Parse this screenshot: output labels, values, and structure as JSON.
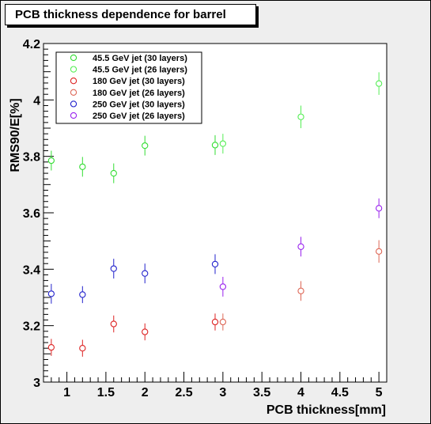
{
  "chart_data": {
    "type": "scatter",
    "title": "PCB thickness dependence for barrel",
    "xlabel": "PCB thickness[mm]",
    "ylabel": "RMS90/E[%]",
    "xlim": [
      0.7,
      5.1
    ],
    "ylim": [
      3.0,
      4.2
    ],
    "xticks": [
      1,
      1.5,
      2,
      2.5,
      3,
      3.5,
      4,
      4.5,
      5
    ],
    "xtick_labels": [
      "1",
      "1.5",
      "2",
      "2.5",
      "3",
      "3.5",
      "4",
      "4.5",
      "5"
    ],
    "yticks": [
      3,
      3.2,
      3.4,
      3.6,
      3.8,
      4,
      4.2
    ],
    "ytick_labels": [
      "3",
      "3.2",
      "3.4",
      "3.6",
      "3.8",
      "4",
      "4.2"
    ],
    "legend_position": "top-left",
    "grid": false,
    "series": [
      {
        "name": "45.5 GeV jet (30 layers)",
        "color": "#33dd33",
        "x": [
          0.8,
          1.2,
          1.6,
          2.0,
          2.9
        ],
        "y": [
          3.785,
          3.763,
          3.74,
          3.838,
          3.84
        ],
        "err": [
          0.035,
          0.035,
          0.035,
          0.035,
          0.035
        ]
      },
      {
        "name": "45.5 GeV jet (26 layers)",
        "color": "#55ee55",
        "x": [
          3.0,
          4.0,
          5.0
        ],
        "y": [
          3.845,
          3.94,
          4.058
        ],
        "err": [
          0.035,
          0.04,
          0.04
        ]
      },
      {
        "name": "180 GeV jet (30 layers)",
        "color": "#dd2222",
        "x": [
          0.8,
          1.2,
          1.6,
          2.0,
          2.9
        ],
        "y": [
          3.123,
          3.12,
          3.206,
          3.178,
          3.213
        ],
        "err": [
          0.03,
          0.03,
          0.03,
          0.03,
          0.03
        ]
      },
      {
        "name": "180 GeV jet (26 layers)",
        "color": "#dd6655",
        "x": [
          3.0,
          4.0,
          5.0
        ],
        "y": [
          3.213,
          3.323,
          3.463
        ],
        "err": [
          0.03,
          0.035,
          0.04
        ]
      },
      {
        "name": "250 GeV jet (30 layers)",
        "color": "#2222cc",
        "x": [
          0.8,
          1.2,
          1.6,
          2.0,
          2.9
        ],
        "y": [
          3.313,
          3.31,
          3.402,
          3.385,
          3.418
        ],
        "err": [
          0.035,
          0.03,
          0.035,
          0.035,
          0.035
        ]
      },
      {
        "name": "250 GeV jet (26 layers)",
        "color": "#9922ee",
        "x": [
          3.0,
          4.0,
          5.0
        ],
        "y": [
          3.338,
          3.48,
          3.616
        ],
        "err": [
          0.035,
          0.035,
          0.035
        ]
      }
    ]
  }
}
